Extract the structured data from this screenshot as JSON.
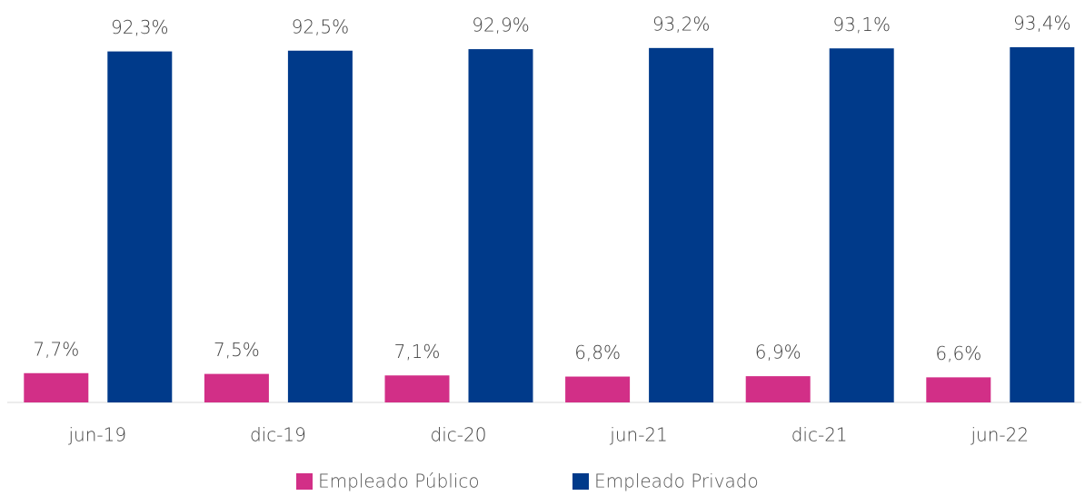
{
  "chart_data": {
    "type": "bar",
    "categories": [
      "jun-19",
      "dic-19",
      "dic-20",
      "jun-21",
      "dic-21",
      "jun-22"
    ],
    "series": [
      {
        "name": "Empleado Público",
        "color": "#d22f87",
        "values": [
          7.7,
          7.5,
          7.1,
          6.8,
          6.9,
          6.6
        ],
        "value_labels": [
          "7,7%",
          "7,5%",
          "7,1%",
          "6,8%",
          "6,9%",
          "6,6%"
        ]
      },
      {
        "name": "Empleado Privado",
        "color": "#003a8a",
        "values": [
          92.3,
          92.5,
          92.9,
          93.2,
          93.1,
          93.4
        ],
        "value_labels": [
          "92,3%",
          "92,5%",
          "92,9%",
          "93,2%",
          "93,1%",
          "93,4%"
        ]
      }
    ],
    "legend": "bottom"
  }
}
